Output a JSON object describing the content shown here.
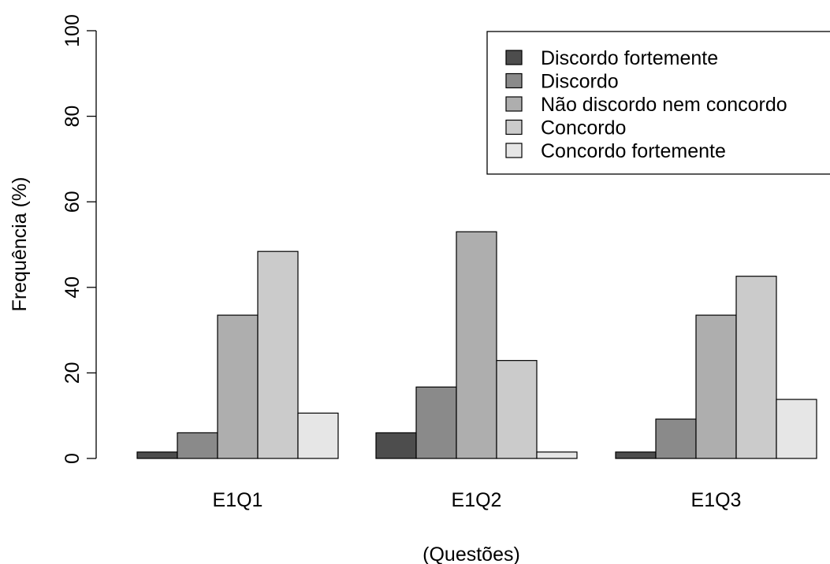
{
  "chart_data": {
    "type": "bar",
    "xlabel": "(Questões)",
    "ylabel": "Frequência (%)",
    "ylim": [
      0,
      100
    ],
    "yticks": [
      0,
      20,
      40,
      60,
      80,
      100
    ],
    "grid": false,
    "legend_position": "top-right",
    "categories": [
      "E1Q1",
      "E1Q2",
      "E1Q3"
    ],
    "series": [
      {
        "name": "Discordo fortemente",
        "color": "#4d4d4d",
        "values": [
          1.5,
          6.0,
          1.5
        ]
      },
      {
        "name": "Discordo",
        "color": "#8a8a8a",
        "values": [
          6.0,
          16.7,
          9.2
        ]
      },
      {
        "name": "Não discordo nem concordo",
        "color": "#aeaeae",
        "values": [
          33.5,
          53.0,
          33.5
        ]
      },
      {
        "name": "Concordo",
        "color": "#cbcbcb",
        "values": [
          48.4,
          22.9,
          42.6
        ]
      },
      {
        "name": "Concordo fortemente",
        "color": "#e6e6e6",
        "values": [
          10.6,
          1.5,
          13.8
        ]
      }
    ]
  }
}
